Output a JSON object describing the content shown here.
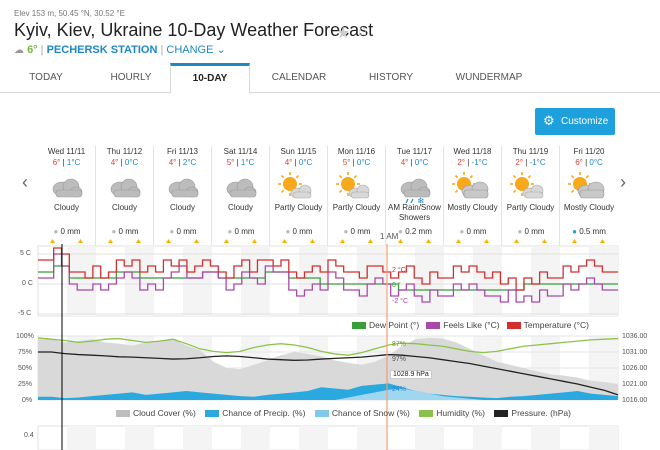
{
  "header": {
    "elevation": "Elev 153 m, 50.45 °N, 30.52 °E",
    "title": "Kyiv, Kiev, Ukraine 10-Day Weather Forecast",
    "current_temp": "6°",
    "station": "PECHERSK STATION",
    "change": "CHANGE"
  },
  "tabs": [
    "TODAY",
    "HOURLY",
    "10-DAY",
    "CALENDAR",
    "HISTORY",
    "WUNDERMAP"
  ],
  "active_tab": "10-DAY",
  "customize_label": "Customize",
  "days": [
    {
      "name": "Wed 11/11",
      "hi": "6°",
      "lo": "1°C",
      "cond": "Cloudy",
      "icon": "cloud-icon",
      "precip": "0 mm"
    },
    {
      "name": "Thu 11/12",
      "hi": "4°",
      "lo": "0°C",
      "cond": "Cloudy",
      "icon": "cloud-icon",
      "precip": "0 mm"
    },
    {
      "name": "Fri 11/13",
      "hi": "4°",
      "lo": "2°C",
      "cond": "Cloudy",
      "icon": "cloud-icon",
      "precip": "0 mm"
    },
    {
      "name": "Sat 11/14",
      "hi": "5°",
      "lo": "1°C",
      "cond": "Cloudy",
      "icon": "cloud-icon",
      "precip": "0 mm"
    },
    {
      "name": "Sun 11/15",
      "hi": "4°",
      "lo": "0°C",
      "cond": "Partly Cloudy",
      "icon": "partly-cloudy-icon",
      "precip": "0 mm"
    },
    {
      "name": "Mon 11/16",
      "hi": "5°",
      "lo": "0°C",
      "cond": "Partly Cloudy",
      "icon": "partly-cloudy-icon",
      "precip": "0 mm"
    },
    {
      "name": "Tue 11/17",
      "hi": "4°",
      "lo": "0°C",
      "cond": "AM Rain/Snow Showers",
      "icon": "rain-snow-icon",
      "precip": "0.2 mm"
    },
    {
      "name": "Wed 11/18",
      "hi": "2°",
      "lo": "-1°C",
      "cond": "Mostly Cloudy",
      "icon": "mostly-cloudy-icon",
      "precip": "0 mm"
    },
    {
      "name": "Thu 11/19",
      "hi": "2°",
      "lo": "-1°C",
      "cond": "Partly Cloudy",
      "icon": "partly-cloudy-icon",
      "precip": "0 mm"
    },
    {
      "name": "Fri 11/20",
      "hi": "6°",
      "lo": "0°C",
      "cond": "Mostly Cloudy",
      "icon": "mostly-cloudy-icon",
      "precip": "0.5 mm"
    }
  ],
  "temp_chart": {
    "y_labels": [
      "5 C",
      "0 C",
      "-5 C"
    ],
    "cursor_label": "1 AM",
    "cursor_values": [
      "2 °C",
      "0 °",
      "-2 °C"
    ],
    "legend": [
      {
        "label": "Dew Point (°)",
        "color": "#3a9e3a"
      },
      {
        "label": "Feels Like (°C)",
        "color": "#a94aa9"
      },
      {
        "label": "Temperature (°C)",
        "color": "#d32f2f"
      }
    ]
  },
  "humidity_chart": {
    "y_left": [
      "100%",
      "75%",
      "50%",
      "25%",
      "0%"
    ],
    "y_right": [
      "1036.00",
      "1031.00",
      "1026.00",
      "1021.00",
      "1016.00"
    ],
    "cursor_values": [
      "87%",
      "97%",
      "1028.9 hPa",
      "24%"
    ],
    "legend": [
      {
        "label": "Cloud Cover (%)",
        "color": "#bdbdbd"
      },
      {
        "label": "Chance of Precip. (%)",
        "color": "#29a9e0"
      },
      {
        "label": "Chance of Snow (%)",
        "color": "#7ec8ec"
      },
      {
        "label": "Humidity (%)",
        "color": "#8bc34a"
      },
      {
        "label": "Pressure. (hPa)",
        "color": "#222222"
      }
    ]
  },
  "bottom_chart": {
    "y_label": "0.4"
  }
}
